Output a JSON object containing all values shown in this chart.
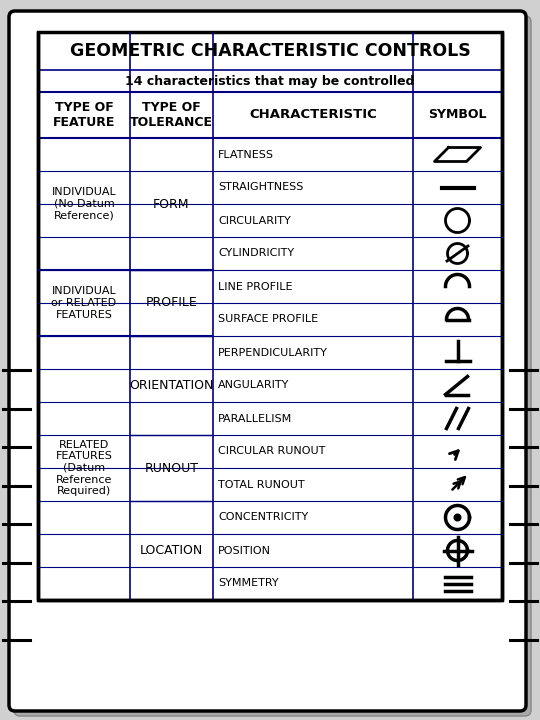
{
  "title": "GEOMETRIC CHARACTERISTIC CONTROLS",
  "subtitle": "14 characteristics that may be controlled",
  "bg_color": "#d0d0d0",
  "table_bg": "#ffffff",
  "border_color": "#000000",
  "inner_border_color": "#000080",
  "char_names": [
    "FLATNESS",
    "STRAIGHTNESS",
    "CIRCULARITY",
    "CYLINDRICITY",
    "LINE PROFILE",
    "SURFACE PROFILE",
    "PERPENDICULARITY",
    "ANGULARITY",
    "PARALLELISM",
    "CIRCULAR RUNOUT",
    "TOTAL RUNOUT",
    "CONCENTRICITY",
    "POSITION",
    "SYMMETRY"
  ],
  "feature_groups": [
    {
      "rows": [
        0,
        1,
        2,
        3
      ],
      "label": "INDIVIDUAL\n(No Datum\nReference)"
    },
    {
      "rows": [
        4,
        5
      ],
      "label": "INDIVIDUAL\nor RELATED\nFEATURES"
    },
    {
      "rows": [
        6,
        7,
        8,
        9,
        10,
        11,
        12,
        13
      ],
      "label": "RELATED\nFEATURES\n(Datum\nReference\nRequired)"
    }
  ],
  "tol_groups": [
    {
      "rows": [
        0,
        1,
        2,
        3
      ],
      "label": "FORM"
    },
    {
      "rows": [
        4,
        5
      ],
      "label": "PROFILE"
    },
    {
      "rows": [
        6,
        7,
        8
      ],
      "label": "ORIENTATION"
    },
    {
      "rows": [
        9,
        10
      ],
      "label": "RUNOUT"
    },
    {
      "rows": [
        11,
        12,
        13
      ],
      "label": "LOCATION"
    }
  ]
}
